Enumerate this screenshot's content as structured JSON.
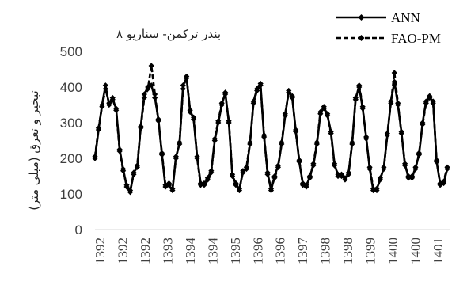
{
  "chart_data": {
    "type": "line",
    "title": "بندر ترکمن- سناریو ۸",
    "xlabel": "",
    "ylabel": "تبخیر و تعرق (میلی متر)",
    "ylim": [
      0,
      500
    ],
    "yticks": [
      0,
      100,
      200,
      300,
      400,
      500
    ],
    "x_tick_labels": [
      "1392",
      "1392",
      "1392",
      "1393",
      "1394",
      "1394",
      "1395",
      "1396",
      "1396",
      "1397",
      "1398",
      "1398",
      "1399",
      "1400",
      "1400",
      "1401"
    ],
    "grid": false,
    "legend_position": "top-right",
    "series": [
      {
        "name": "ANN",
        "style": "solid",
        "color": "#000000",
        "values": [
          200,
          280,
          350,
          405,
          350,
          365,
          340,
          225,
          170,
          120,
          105,
          160,
          175,
          290,
          380,
          400,
          405,
          370,
          310,
          210,
          120,
          125,
          110,
          205,
          240,
          405,
          425,
          335,
          310,
          205,
          130,
          125,
          145,
          165,
          250,
          300,
          350,
          385,
          300,
          150,
          130,
          110,
          165,
          170,
          240,
          360,
          395,
          410,
          260,
          160,
          110,
          150,
          180,
          240,
          320,
          390,
          370,
          280,
          190,
          130,
          120,
          150,
          180,
          240,
          325,
          345,
          320,
          275,
          185,
          150,
          155,
          140,
          160,
          240,
          370,
          400,
          340,
          260,
          170,
          110,
          115,
          140,
          175,
          265,
          360,
          415,
          350,
          275,
          180,
          150,
          145,
          175,
          210,
          300,
          360,
          370,
          360,
          190,
          130,
          130,
          170
        ]
      },
      {
        "name": "FAO-PM",
        "style": "dashed",
        "color": "#000000",
        "values": [
          205,
          285,
          345,
          395,
          355,
          370,
          335,
          220,
          165,
          125,
          110,
          155,
          180,
          285,
          370,
          395,
          460,
          380,
          305,
          215,
          125,
          130,
          115,
          200,
          245,
          395,
          430,
          330,
          315,
          200,
          125,
          130,
          140,
          160,
          255,
          305,
          355,
          380,
          305,
          155,
          125,
          115,
          160,
          175,
          245,
          355,
          390,
          405,
          265,
          155,
          115,
          145,
          175,
          245,
          325,
          385,
          375,
          275,
          195,
          125,
          125,
          145,
          185,
          245,
          330,
          340,
          325,
          270,
          180,
          155,
          150,
          145,
          155,
          245,
          365,
          405,
          345,
          255,
          175,
          115,
          110,
          145,
          170,
          270,
          355,
          440,
          355,
          270,
          185,
          145,
          150,
          170,
          215,
          295,
          355,
          375,
          355,
          195,
          125,
          135,
          175
        ]
      }
    ]
  }
}
